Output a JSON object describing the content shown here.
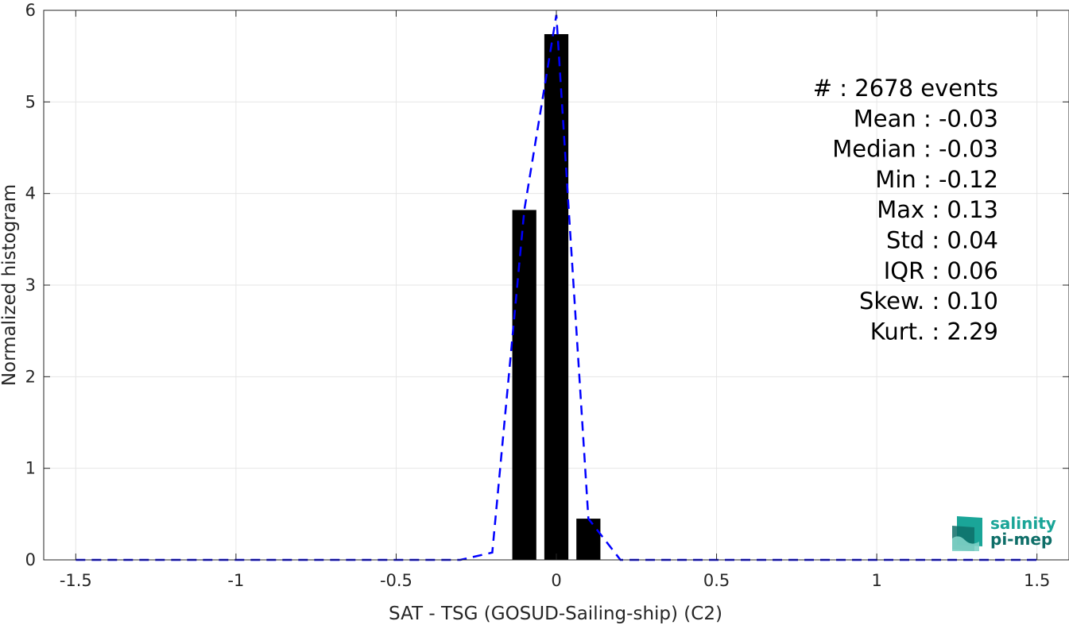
{
  "chart_data": {
    "type": "bar",
    "xlabel": "SAT - TSG (GOSUD-Sailing-ship) (C2)",
    "ylabel": "Normalized histogram",
    "xlim": [
      -1.6,
      1.6
    ],
    "ylim": [
      0,
      6
    ],
    "xticks": [
      -1.5,
      -1,
      -0.5,
      0,
      0.5,
      1,
      1.5
    ],
    "xtick_labels": [
      "-1.5",
      "-1",
      "-0.5",
      "0",
      "0.5",
      "1",
      "1.5"
    ],
    "yticks": [
      0,
      1,
      2,
      3,
      4,
      5,
      6
    ],
    "ytick_labels": [
      "0",
      "1",
      "2",
      "3",
      "4",
      "5",
      "6"
    ],
    "grid": true,
    "bar_width": 0.075,
    "bars": [
      {
        "x": -0.1,
        "y": 3.82
      },
      {
        "x": 0.0,
        "y": 5.74
      },
      {
        "x": 0.1,
        "y": 0.45
      }
    ],
    "fit_line": {
      "style": "dashed",
      "color": "#0000ff",
      "x": [
        -1.5,
        -1.4,
        -1.3,
        -1.2,
        -1.1,
        -1.0,
        -0.9,
        -0.8,
        -0.7,
        -0.6,
        -0.5,
        -0.4,
        -0.3,
        -0.2,
        -0.1,
        0.0,
        0.1,
        0.2,
        0.3,
        0.4,
        0.5,
        0.6,
        0.7,
        0.8,
        0.9,
        1.0,
        1.1,
        1.2,
        1.3,
        1.4,
        1.5
      ],
      "y": [
        0,
        0,
        0,
        0,
        0,
        0,
        0,
        0,
        0,
        0,
        0,
        0,
        0,
        0.08,
        3.82,
        5.95,
        0.45,
        0,
        0,
        0,
        0,
        0,
        0,
        0,
        0,
        0,
        0,
        0,
        0,
        0,
        0
      ]
    },
    "stats": [
      "#  : 2678 events",
      "Mean : -0.03",
      "Median : -0.03",
      "Min : -0.12",
      "Max : 0.13",
      "Std : 0.04",
      "IQR : 0.06",
      "Skew. : 0.10",
      "Kurt. : 2.29"
    ]
  },
  "logo": {
    "line1": "salinity",
    "line2": "pi-mep"
  },
  "colors": {
    "bar": "#000000",
    "fit_line": "#0000ff",
    "grid": "#e6e6e6",
    "axis": "#262626",
    "logo_teal": "#1aa598",
    "logo_dark": "#0e6e68"
  }
}
